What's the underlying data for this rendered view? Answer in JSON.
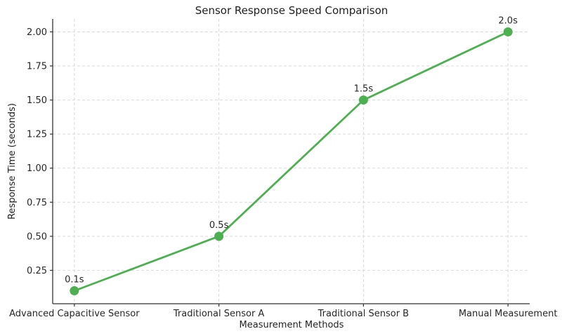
{
  "chart_data": {
    "type": "line",
    "title": "Sensor Response Speed Comparison",
    "xlabel": "Measurement Methods",
    "ylabel": "Response Time (seconds)",
    "categories": [
      "Advanced Capacitive Sensor",
      "Traditional Sensor A",
      "Traditional Sensor B",
      "Manual Measurement"
    ],
    "values": [
      0.1,
      0.5,
      1.5,
      2.0
    ],
    "point_labels": [
      "0.1s",
      "0.5s",
      "1.5s",
      "2.0s"
    ],
    "ytick_values": [
      0.25,
      0.5,
      0.75,
      1.0,
      1.25,
      1.5,
      1.75,
      2.0
    ],
    "ytick_labels": [
      "0.25",
      "0.50",
      "0.75",
      "1.00",
      "1.25",
      "1.50",
      "1.75",
      "2.00"
    ],
    "ylim": [
      0.005,
      2.095
    ],
    "xlim": [
      -0.15,
      3.15
    ],
    "grid": true,
    "grid_style": "dashed",
    "legend": "none",
    "colors": {
      "line": "#4caf50",
      "marker": "#4caf50",
      "grid": "#d9d9d9",
      "axis": "#333333",
      "text": "#262626",
      "background": "#ffffff"
    }
  }
}
